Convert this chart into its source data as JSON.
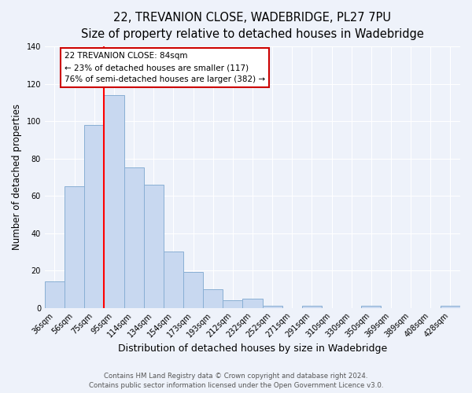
{
  "title": "22, TREVANION CLOSE, WADEBRIDGE, PL27 7PU",
  "subtitle": "Size of property relative to detached houses in Wadebridge",
  "xlabel": "Distribution of detached houses by size in Wadebridge",
  "ylabel": "Number of detached properties",
  "bar_labels": [
    "36sqm",
    "56sqm",
    "75sqm",
    "95sqm",
    "114sqm",
    "134sqm",
    "154sqm",
    "173sqm",
    "193sqm",
    "212sqm",
    "232sqm",
    "252sqm",
    "271sqm",
    "291sqm",
    "310sqm",
    "330sqm",
    "350sqm",
    "369sqm",
    "389sqm",
    "408sqm",
    "428sqm"
  ],
  "bar_values": [
    14,
    65,
    98,
    114,
    75,
    66,
    30,
    19,
    10,
    4,
    5,
    1,
    0,
    1,
    0,
    0,
    1,
    0,
    0,
    0,
    1
  ],
  "bar_color": "#c8d8f0",
  "bar_edge_color": "#89afd4",
  "ylim": [
    0,
    140
  ],
  "yticks": [
    0,
    20,
    40,
    60,
    80,
    100,
    120,
    140
  ],
  "red_line_x": 2.5,
  "annotation_title": "22 TREVANION CLOSE: 84sqm",
  "annotation_line1": "← 23% of detached houses are smaller (117)",
  "annotation_line2": "76% of semi-detached houses are larger (382) →",
  "annotation_box_facecolor": "#ffffff",
  "annotation_box_edgecolor": "#cc0000",
  "footer_line1": "Contains HM Land Registry data © Crown copyright and database right 2024.",
  "footer_line2": "Contains public sector information licensed under the Open Government Licence v3.0.",
  "bg_color": "#eef2fa",
  "plot_bg_color": "#eef2fa",
  "grid_color": "#ffffff",
  "title_fontsize": 10.5,
  "subtitle_fontsize": 9.5,
  "xlabel_fontsize": 9,
  "ylabel_fontsize": 8.5,
  "tick_fontsize": 7,
  "annotation_fontsize": 7.5,
  "footer_fontsize": 6.2
}
